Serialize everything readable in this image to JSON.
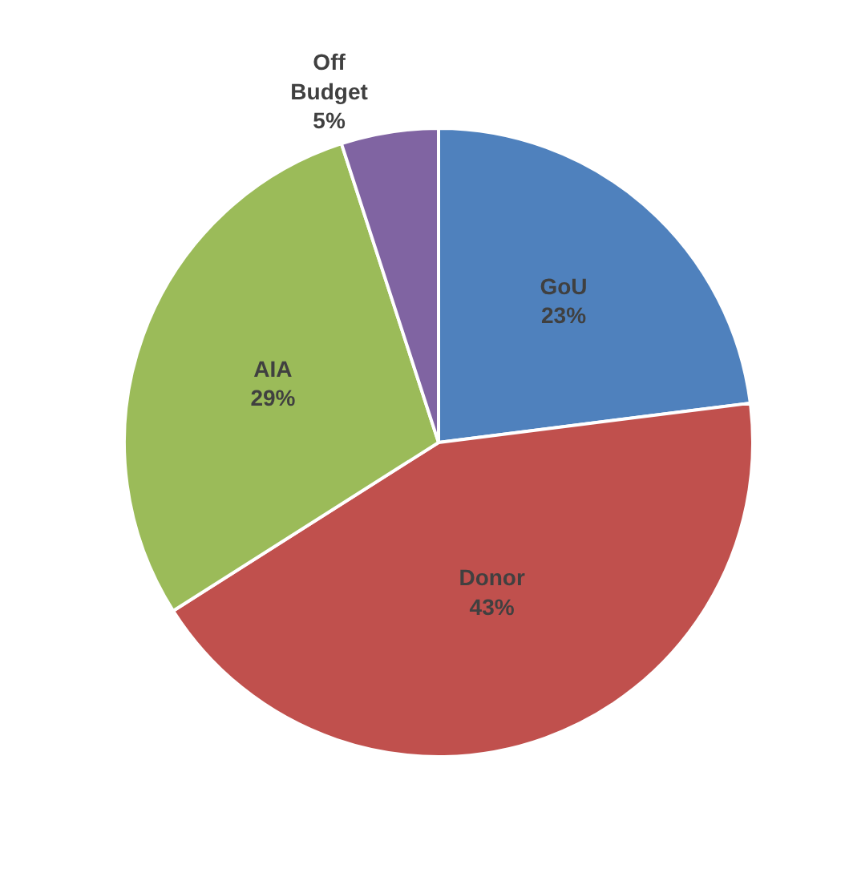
{
  "chart_data": {
    "type": "pie",
    "categories": [
      "GoU",
      "Donor",
      "AIA",
      "Off Budget"
    ],
    "values": [
      23,
      43,
      29,
      5
    ],
    "value_labels": [
      "23%",
      "43%",
      "29%",
      "5%"
    ],
    "colors": [
      "#4f81bd",
      "#c0504d",
      "#9bbb59",
      "#8064a2"
    ],
    "legend": false
  }
}
